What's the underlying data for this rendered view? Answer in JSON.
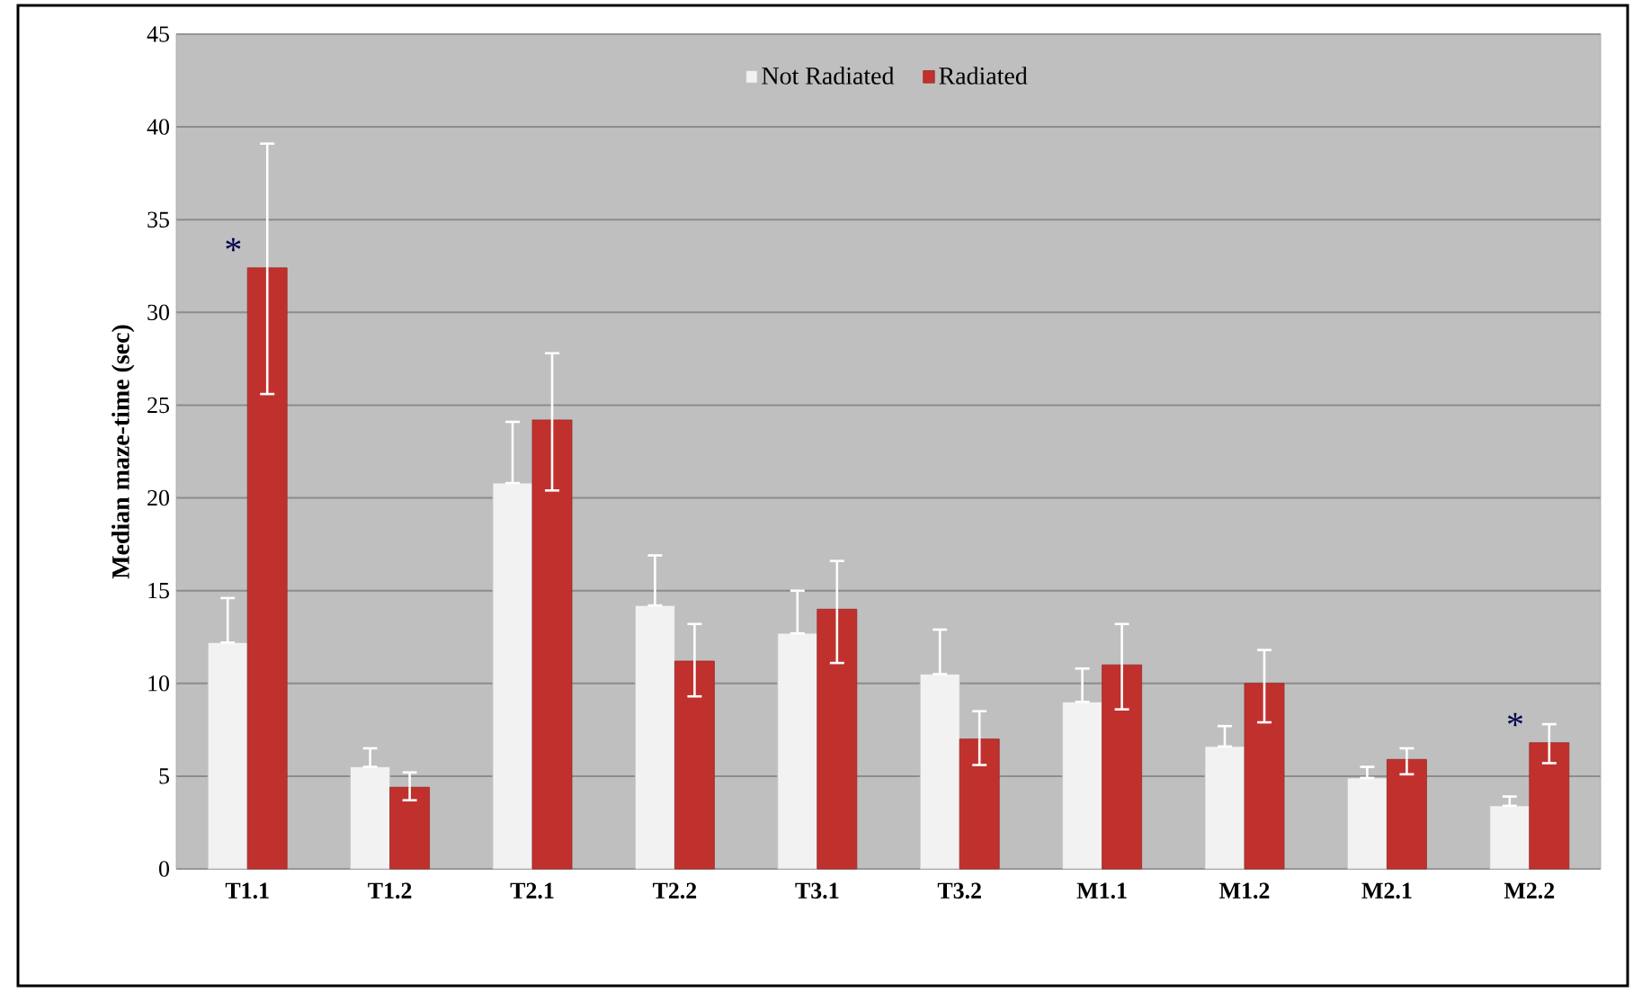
{
  "chart_data": {
    "type": "bar",
    "ylabel": "Median maze-time (sec)",
    "categories": [
      "T1.1",
      "T1.2",
      "T2.1",
      "T2.2",
      "T3.1",
      "T3.2",
      "M1.1",
      "M1.2",
      "M2.1",
      "M2.2"
    ],
    "series": [
      {
        "name": "Not Radiated",
        "color": "#f2f2f2",
        "values": [
          12.2,
          5.5,
          20.8,
          14.2,
          12.7,
          10.5,
          9.0,
          6.6,
          4.9,
          3.4
        ],
        "errors": [
          [
            12.2,
            14.6
          ],
          [
            5.5,
            6.5
          ],
          [
            20.8,
            24.1
          ],
          [
            14.2,
            16.9
          ],
          [
            12.7,
            15.0
          ],
          [
            10.5,
            12.9
          ],
          [
            9.0,
            10.8
          ],
          [
            6.6,
            7.7
          ],
          [
            4.9,
            5.5
          ],
          [
            3.4,
            3.9
          ]
        ]
      },
      {
        "name": "Radiated",
        "color": "#c0312e",
        "values": [
          32.4,
          4.4,
          24.2,
          11.2,
          14.0,
          7.0,
          11.0,
          10.0,
          5.9,
          6.8
        ],
        "errors": [
          [
            25.6,
            39.1
          ],
          [
            3.7,
            5.2
          ],
          [
            20.4,
            27.8
          ],
          [
            9.3,
            13.2
          ],
          [
            11.1,
            16.6
          ],
          [
            5.6,
            8.5
          ],
          [
            8.6,
            13.2
          ],
          [
            7.9,
            11.8
          ],
          [
            5.1,
            6.5
          ],
          [
            5.7,
            7.8
          ]
        ]
      }
    ],
    "ylim": [
      0,
      45
    ],
    "yticks": [
      0,
      5,
      10,
      15,
      20,
      25,
      30,
      35,
      40,
      45
    ],
    "grid": "y",
    "legend": "top",
    "annotations": [
      "*",
      "*"
    ]
  }
}
